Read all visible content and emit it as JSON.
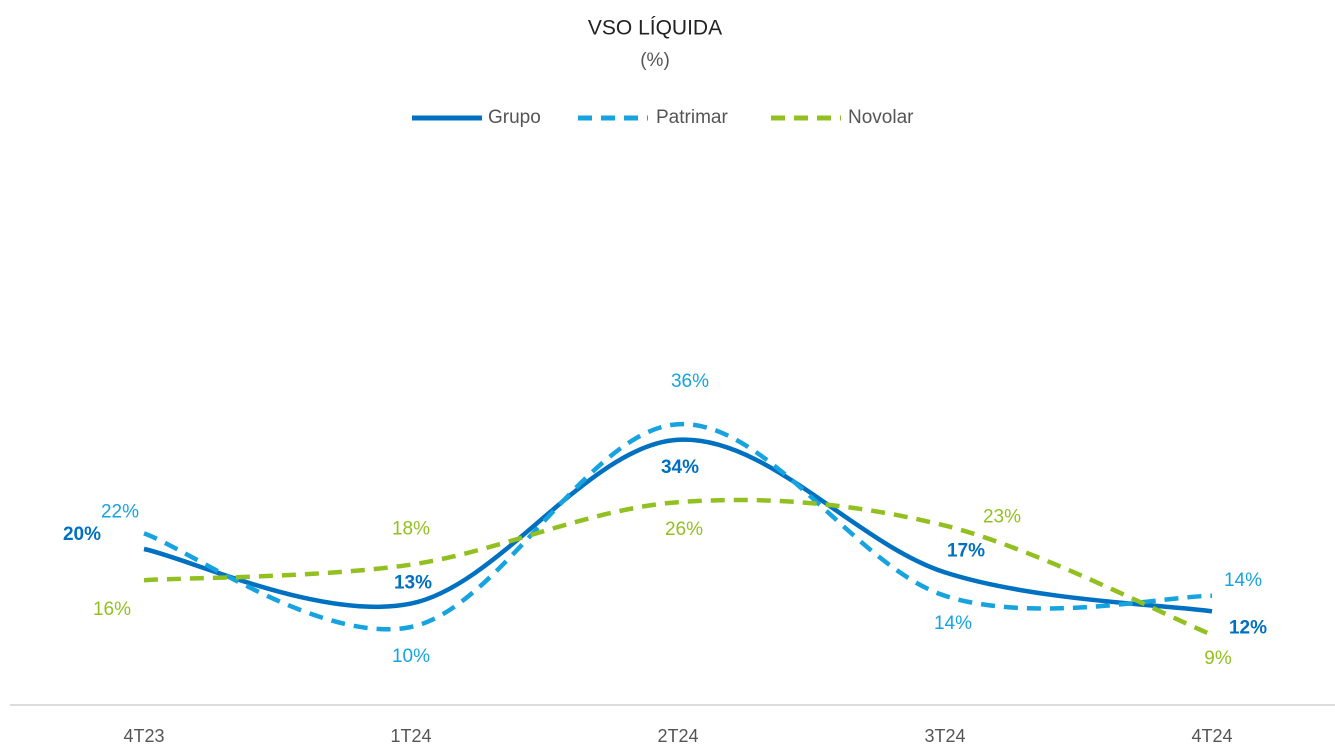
{
  "chart_data": {
    "type": "line",
    "title": "VSO LÍQUIDA",
    "subtitle": "(%)",
    "categories": [
      "4T23",
      "1T24",
      "2T24",
      "3T24",
      "4T24"
    ],
    "series": [
      {
        "name": "Grupo",
        "color": "#0070c0",
        "dash": false,
        "values": [
          20,
          13,
          34,
          17,
          12
        ],
        "value_labels": [
          "20%",
          "13%",
          "34%",
          "17%",
          "12%"
        ]
      },
      {
        "name": "Patrimar",
        "color": "#16a3e0",
        "dash": true,
        "values": [
          22,
          10,
          36,
          14,
          14
        ],
        "value_labels": [
          "22%",
          "10%",
          "36%",
          "14%",
          "14%"
        ]
      },
      {
        "name": "Novolar",
        "color": "#92c020",
        "dash": true,
        "values": [
          16,
          18,
          26,
          23,
          9
        ],
        "value_labels": [
          "16%",
          "18%",
          "26%",
          "23%",
          "9%"
        ]
      }
    ],
    "legend": "top"
  }
}
